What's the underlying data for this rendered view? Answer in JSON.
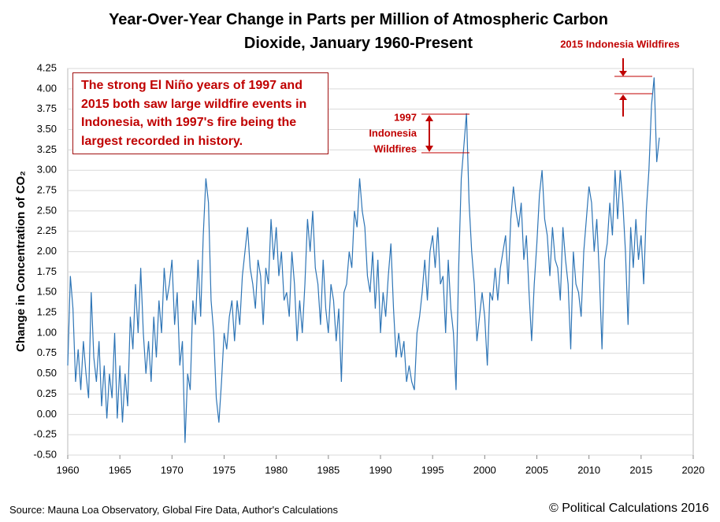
{
  "chart_data": {
    "type": "line",
    "title": "Year-Over-Year Change in Parts per Million of Atmospheric Carbon Dioxide, January 1960-Present",
    "y_label": "Change in Concentration of CO₂",
    "note": "The strong El Niño years of 1997 and 2015 both saw large wildfire events in Indonesia, with 1997's fire being the largest recorded in history.",
    "annotation_1997": [
      "1997",
      "Indonesia",
      "Wildfires"
    ],
    "annotation_2015": "2015 Indonesia Wildfires",
    "source": "Source: Mauna Loa Observatory, Global Fire Data, Author's Calculations",
    "credit": "© Political Calculations 2016",
    "color": "#2e75b6",
    "grid": true,
    "xlim": [
      1960,
      2020
    ],
    "xticks": [
      1960,
      1965,
      1970,
      1975,
      1980,
      1985,
      1990,
      1995,
      2000,
      2005,
      2010,
      2015,
      2020
    ],
    "ylim": [
      -0.5,
      4.25
    ],
    "yticks": [
      {
        "value": -0.5,
        "label": "-0.50"
      },
      -0.25,
      {
        "value": 0,
        "label": "0.00"
      },
      0.25,
      {
        "value": 0.5,
        "label": "0.50"
      },
      0.75,
      {
        "value": 1,
        "label": "1.00"
      },
      1.25,
      {
        "value": 1.5,
        "label": "1.50"
      },
      1.75,
      {
        "value": 2,
        "label": "2.00"
      },
      2.25,
      {
        "value": 2.5,
        "label": "2.50"
      },
      2.75,
      {
        "value": 3,
        "label": "3.00"
      },
      3.25,
      {
        "value": 3.5,
        "label": "3.50"
      },
      3.75,
      {
        "value": 4,
        "label": "4.00"
      },
      4.25
    ],
    "x": [
      1960,
      1960.25,
      1960.5,
      1960.75,
      1961,
      1961.25,
      1961.5,
      1961.75,
      1962,
      1962.25,
      1962.5,
      1962.75,
      1963,
      1963.25,
      1963.5,
      1963.75,
      1964,
      1964.25,
      1964.5,
      1964.75,
      1965,
      1965.25,
      1965.5,
      1965.75,
      1966,
      1966.25,
      1966.5,
      1966.75,
      1967,
      1967.25,
      1967.5,
      1967.75,
      1968,
      1968.25,
      1968.5,
      1968.75,
      1969,
      1969.25,
      1969.5,
      1969.75,
      1970,
      1970.25,
      1970.5,
      1970.75,
      1971,
      1971.25,
      1971.5,
      1971.75,
      1972,
      1972.25,
      1972.5,
      1972.75,
      1973,
      1973.25,
      1973.5,
      1973.75,
      1974,
      1974.25,
      1974.5,
      1974.75,
      1975,
      1975.25,
      1975.5,
      1975.75,
      1976,
      1976.25,
      1976.5,
      1976.75,
      1977,
      1977.25,
      1977.5,
      1977.75,
      1978,
      1978.25,
      1978.5,
      1978.75,
      1979,
      1979.25,
      1979.5,
      1979.75,
      1980,
      1980.25,
      1980.5,
      1980.75,
      1981,
      1981.25,
      1981.5,
      1981.75,
      1982,
      1982.25,
      1982.5,
      1982.75,
      1983,
      1983.25,
      1983.5,
      1983.75,
      1984,
      1984.25,
      1984.5,
      1984.75,
      1985,
      1985.25,
      1985.5,
      1985.75,
      1986,
      1986.25,
      1986.5,
      1986.75,
      1987,
      1987.25,
      1987.5,
      1987.75,
      1988,
      1988.25,
      1988.5,
      1988.75,
      1989,
      1989.25,
      1989.5,
      1989.75,
      1990,
      1990.25,
      1990.5,
      1990.75,
      1991,
      1991.25,
      1991.5,
      1991.75,
      1992,
      1992.25,
      1992.5,
      1992.75,
      1993,
      1993.25,
      1993.5,
      1993.75,
      1994,
      1994.25,
      1994.5,
      1994.75,
      1995,
      1995.25,
      1995.5,
      1995.75,
      1996,
      1996.25,
      1996.5,
      1996.75,
      1997,
      1997.25,
      1997.5,
      1997.75,
      1998,
      1998.25,
      1998.5,
      1998.75,
      1999,
      1999.25,
      1999.5,
      1999.75,
      2000,
      2000.25,
      2000.5,
      2000.75,
      2001,
      2001.25,
      2001.5,
      2001.75,
      2002,
      2002.25,
      2002.5,
      2002.75,
      2003,
      2003.25,
      2003.5,
      2003.75,
      2004,
      2004.25,
      2004.5,
      2004.75,
      2005,
      2005.25,
      2005.5,
      2005.75,
      2006,
      2006.25,
      2006.5,
      2006.75,
      2007,
      2007.25,
      2007.5,
      2007.75,
      2008,
      2008.25,
      2008.5,
      2008.75,
      2009,
      2009.25,
      2009.5,
      2009.75,
      2010,
      2010.25,
      2010.5,
      2010.75,
      2011,
      2011.25,
      2011.5,
      2011.75,
      2012,
      2012.25,
      2012.5,
      2012.75,
      2013,
      2013.25,
      2013.5,
      2013.75,
      2014,
      2014.25,
      2014.5,
      2014.75,
      2015,
      2015.25,
      2015.5,
      2015.75,
      2016,
      2016.25,
      2016.5,
      2016.75
    ],
    "values": [
      0.6,
      1.7,
      1.3,
      0.4,
      0.8,
      0.3,
      0.9,
      0.5,
      0.2,
      1.5,
      0.7,
      0.4,
      0.9,
      0.1,
      0.6,
      -0.05,
      0.5,
      0.2,
      1.0,
      -0.05,
      0.6,
      -0.1,
      0.5,
      0.1,
      1.2,
      0.8,
      1.6,
      1.0,
      1.8,
      1.0,
      0.5,
      0.9,
      0.4,
      1.2,
      0.7,
      1.4,
      1.0,
      1.8,
      1.4,
      1.6,
      1.9,
      1.1,
      1.5,
      0.6,
      0.9,
      -0.35,
      0.5,
      0.3,
      1.4,
      1.1,
      1.9,
      1.2,
      2.2,
      2.9,
      2.6,
      1.4,
      1.0,
      0.2,
      -0.1,
      0.4,
      1.0,
      0.8,
      1.2,
      1.4,
      0.9,
      1.4,
      1.1,
      1.7,
      2.0,
      2.3,
      1.8,
      1.6,
      1.3,
      1.9,
      1.7,
      1.1,
      1.8,
      1.6,
      2.4,
      1.9,
      2.3,
      1.7,
      2.0,
      1.4,
      1.5,
      1.2,
      2.0,
      1.6,
      0.9,
      1.4,
      1.0,
      1.6,
      2.4,
      2.0,
      2.5,
      1.8,
      1.6,
      1.1,
      1.9,
      1.3,
      1.0,
      1.6,
      1.4,
      0.9,
      1.3,
      0.4,
      1.5,
      1.6,
      2.0,
      1.8,
      2.5,
      2.3,
      2.9,
      2.5,
      2.3,
      1.7,
      1.5,
      2.0,
      1.3,
      1.9,
      1.0,
      1.5,
      1.2,
      1.7,
      2.1,
      1.3,
      0.7,
      1.0,
      0.7,
      0.9,
      0.4,
      0.6,
      0.4,
      0.3,
      1.0,
      1.2,
      1.5,
      1.9,
      1.4,
      2.0,
      2.2,
      1.8,
      2.3,
      1.6,
      1.7,
      1.0,
      1.9,
      1.3,
      1.0,
      0.3,
      1.8,
      2.9,
      3.3,
      3.7,
      2.6,
      2.0,
      1.6,
      0.9,
      1.2,
      1.5,
      1.2,
      0.6,
      1.5,
      1.4,
      1.8,
      1.4,
      1.8,
      2.0,
      2.2,
      1.6,
      2.4,
      2.8,
      2.5,
      2.3,
      2.6,
      1.9,
      2.2,
      1.5,
      0.9,
      1.6,
      2.1,
      2.7,
      3.0,
      2.4,
      2.2,
      1.7,
      2.3,
      1.9,
      1.8,
      1.4,
      2.3,
      1.9,
      1.6,
      0.8,
      2.0,
      1.6,
      1.5,
      1.2,
      2.0,
      2.4,
      2.8,
      2.6,
      2.0,
      2.4,
      1.7,
      0.8,
      1.9,
      2.1,
      2.6,
      2.2,
      3.0,
      2.4,
      3.0,
      2.6,
      2.0,
      1.1,
      2.3,
      1.8,
      2.4,
      1.9,
      2.2,
      1.6,
      2.5,
      3.0,
      3.8,
      4.14,
      3.1,
      3.4
    ]
  }
}
